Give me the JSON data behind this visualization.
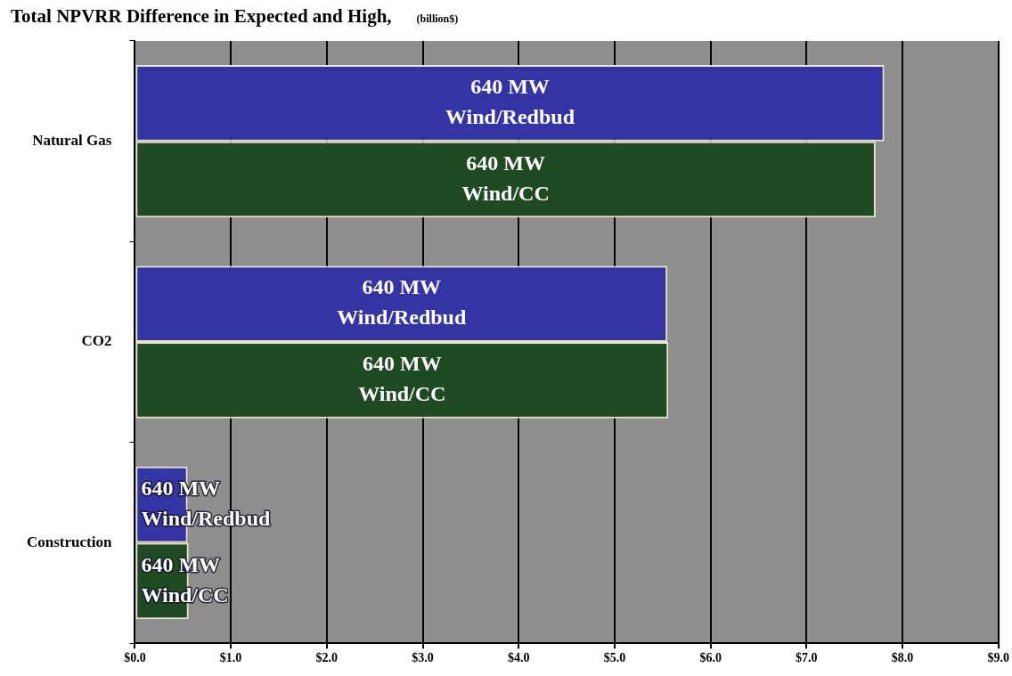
{
  "chart_data": {
    "type": "bar",
    "orientation": "horizontal",
    "title": "Total NPVRR Difference in Expected and High,",
    "subtitle": "(billion$)",
    "categories": [
      "Natural Gas",
      "CO2",
      "Construction"
    ],
    "series": [
      {
        "name": "640 MW\nWind/Redbud",
        "color": "#3434a4",
        "values": [
          7.81,
          5.55,
          0.55
        ]
      },
      {
        "name": "640 MW\nWind/CC",
        "color": "#1f4a22",
        "values": [
          7.72,
          5.56,
          0.56
        ]
      }
    ],
    "xlim": [
      0,
      9
    ],
    "xticks": [
      {
        "value": 0,
        "label": "$0.0"
      },
      {
        "value": 1,
        "label": "$1.0"
      },
      {
        "value": 2,
        "label": "$2.0"
      },
      {
        "value": 3,
        "label": "$3.0"
      },
      {
        "value": 4,
        "label": "$4.0"
      },
      {
        "value": 5,
        "label": "$5.0"
      },
      {
        "value": 6,
        "label": "$6.0"
      },
      {
        "value": 7,
        "label": "$7.0"
      },
      {
        "value": 8,
        "label": "$8.0"
      },
      {
        "value": 9,
        "label": "$9.0"
      }
    ],
    "grid": "x",
    "legend": false
  }
}
